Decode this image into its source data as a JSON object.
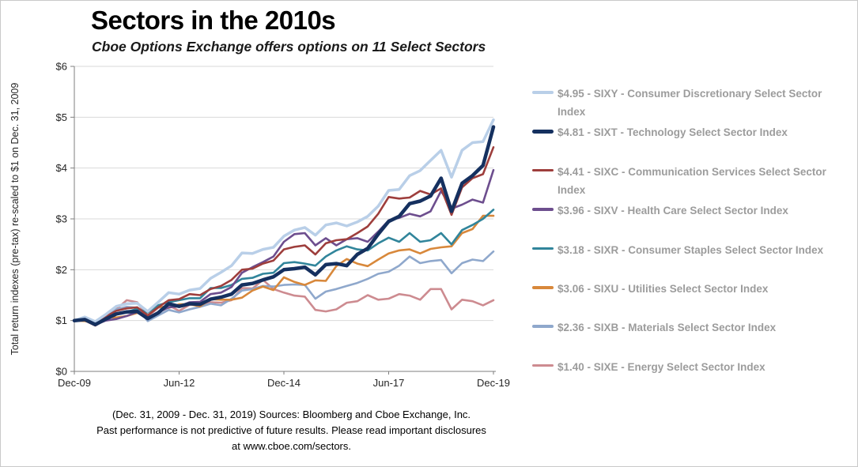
{
  "header": {
    "title": "Sectors in the 2010s",
    "subtitle": "Cboe Options Exchange offers options on 11 Select Sectors"
  },
  "footer": {
    "line1": "(Dec. 31, 2009 - Dec. 31, 2019)  Sources: Bloomberg and Cboe Exchange, Inc.",
    "line2": "Past performance is not predictive of future results. Please read important disclosures",
    "line3": "at www.cboe.com/sectors."
  },
  "chart_data": {
    "type": "line",
    "title": "Sectors in the 2010s",
    "subtitle": "Cboe Options Exchange offers options on 11 Select Sectors",
    "xlabel": "",
    "ylabel": "Total return indexes (pre-tax) re-scaled to $1 on Dec. 31, 2009",
    "period": "Dec. 31, 2009 - Dec. 31, 2019",
    "x_unit": "quarters since Dec-2009",
    "ylim": [
      0,
      6
    ],
    "grid": true,
    "legend_position": "right",
    "axis_color": "#7f7f7f",
    "grid_color": "#d9d9d9",
    "y_ticks": [
      {
        "label": "$0",
        "v": 0
      },
      {
        "label": "$1",
        "v": 1
      },
      {
        "label": "$2",
        "v": 2
      },
      {
        "label": "$3",
        "v": 3
      },
      {
        "label": "$4",
        "v": 4
      },
      {
        "label": "$5",
        "v": 5
      },
      {
        "label": "$6",
        "v": 6
      }
    ],
    "x_ticks": [
      {
        "label": "Dec-09",
        "q": 0
      },
      {
        "label": "Jun-12",
        "q": 10
      },
      {
        "label": "Dec-14",
        "q": 20
      },
      {
        "label": "Jun-17",
        "q": 30
      },
      {
        "label": "Dec-19",
        "q": 40
      }
    ],
    "draw_order": [
      7,
      6,
      5,
      4,
      3,
      2,
      0,
      1
    ],
    "series": [
      {
        "ticker": "SIXY",
        "name": "Consumer Discretionary Select Sector Index",
        "final_value": "$4.95",
        "legend_label": "$4.95 - SIXY - Consumer Discretionary Select Sector Index",
        "color": "#b9cfe8",
        "stroke_width": 3.5,
        "values": [
          1.0,
          1.07,
          0.98,
          1.12,
          1.28,
          1.33,
          1.34,
          1.18,
          1.36,
          1.55,
          1.52,
          1.6,
          1.63,
          1.83,
          1.95,
          2.08,
          2.33,
          2.32,
          2.4,
          2.44,
          2.66,
          2.78,
          2.83,
          2.68,
          2.88,
          2.92,
          2.86,
          2.94,
          3.05,
          3.25,
          3.56,
          3.58,
          3.85,
          3.95,
          4.15,
          4.35,
          3.82,
          4.35,
          4.5,
          4.52,
          4.95
        ]
      },
      {
        "ticker": "SIXT",
        "name": "Technology Select Sector Index",
        "final_value": "$4.81",
        "legend_label": "$4.81 - SIXT - Technology Select Sector Index",
        "color": "#15305f",
        "stroke_width": 4.5,
        "values": [
          1.0,
          1.02,
          0.92,
          1.03,
          1.13,
          1.17,
          1.18,
          1.04,
          1.15,
          1.33,
          1.28,
          1.33,
          1.32,
          1.42,
          1.46,
          1.52,
          1.7,
          1.73,
          1.8,
          1.86,
          2.0,
          2.02,
          2.05,
          1.9,
          2.1,
          2.12,
          2.08,
          2.3,
          2.42,
          2.7,
          2.95,
          3.05,
          3.3,
          3.35,
          3.45,
          3.8,
          3.15,
          3.7,
          3.85,
          4.05,
          4.81
        ]
      },
      {
        "ticker": "SIXC",
        "name": "Communication Services Select Sector Index",
        "final_value": "$4.41",
        "legend_label": "$4.41 - SIXC - Communication Services Select Sector Index",
        "color": "#9e3e3c",
        "stroke_width": 2.6,
        "values": [
          1.0,
          1.05,
          0.96,
          1.08,
          1.19,
          1.24,
          1.26,
          1.1,
          1.26,
          1.4,
          1.42,
          1.52,
          1.5,
          1.62,
          1.68,
          1.8,
          2.0,
          2.02,
          2.12,
          2.18,
          2.4,
          2.45,
          2.48,
          2.3,
          2.52,
          2.58,
          2.6,
          2.72,
          2.85,
          3.1,
          3.43,
          3.4,
          3.42,
          3.55,
          3.48,
          3.6,
          3.08,
          3.62,
          3.8,
          3.88,
          4.41
        ]
      },
      {
        "ticker": "SIXV",
        "name": "Health Care Select Sector Index",
        "final_value": "$3.96",
        "legend_label": "$3.96 - SIXV - Health Care Select Sector Index",
        "color": "#6d4e8e",
        "stroke_width": 2.6,
        "values": [
          1.0,
          1.03,
          0.92,
          1.0,
          1.03,
          1.09,
          1.17,
          1.05,
          1.16,
          1.26,
          1.28,
          1.36,
          1.37,
          1.52,
          1.55,
          1.66,
          1.94,
          2.05,
          2.15,
          2.26,
          2.55,
          2.7,
          2.72,
          2.48,
          2.62,
          2.48,
          2.6,
          2.62,
          2.55,
          2.75,
          2.97,
          3.02,
          3.1,
          3.05,
          3.15,
          3.55,
          3.2,
          3.28,
          3.38,
          3.32,
          3.96
        ]
      },
      {
        "ticker": "SIXR",
        "name": "Consumer Staples Select Sector Index",
        "final_value": "$3.18",
        "legend_label": "$3.18 - SIXR - Consumer Staples Select Sector Index",
        "color": "#31859b",
        "stroke_width": 2.6,
        "values": [
          1.0,
          1.05,
          0.98,
          1.08,
          1.14,
          1.17,
          1.23,
          1.16,
          1.3,
          1.36,
          1.4,
          1.44,
          1.44,
          1.64,
          1.64,
          1.7,
          1.82,
          1.84,
          1.92,
          1.94,
          2.13,
          2.15,
          2.12,
          2.08,
          2.26,
          2.38,
          2.46,
          2.4,
          2.38,
          2.52,
          2.63,
          2.55,
          2.72,
          2.55,
          2.58,
          2.72,
          2.5,
          2.78,
          2.88,
          3.0,
          3.18
        ]
      },
      {
        "ticker": "SIXU",
        "name": "Utilities Select Sector Index",
        "final_value": "$3.06",
        "legend_label": "$3.06 - SIXU - Utilities Select Sector Index",
        "color": "#d8883b",
        "stroke_width": 2.6,
        "values": [
          1.0,
          0.99,
          0.95,
          1.07,
          1.06,
          1.09,
          1.15,
          1.16,
          1.27,
          1.25,
          1.32,
          1.32,
          1.28,
          1.42,
          1.41,
          1.41,
          1.45,
          1.59,
          1.67,
          1.6,
          1.85,
          1.76,
          1.7,
          1.79,
          1.78,
          2.07,
          2.21,
          2.12,
          2.07,
          2.2,
          2.32,
          2.38,
          2.4,
          2.32,
          2.41,
          2.44,
          2.46,
          2.72,
          2.8,
          3.06,
          3.06
        ]
      },
      {
        "ticker": "SIXB",
        "name": "Materials Select Sector Index",
        "final_value": "$2.36",
        "legend_label": "$2.36 - SIXB - Materials Select Sector Index",
        "color": "#8fa8cc",
        "stroke_width": 2.6,
        "values": [
          1.0,
          1.03,
          0.92,
          1.07,
          1.22,
          1.27,
          1.25,
          0.99,
          1.1,
          1.21,
          1.16,
          1.22,
          1.27,
          1.33,
          1.3,
          1.43,
          1.59,
          1.62,
          1.68,
          1.67,
          1.7,
          1.71,
          1.7,
          1.43,
          1.57,
          1.62,
          1.68,
          1.74,
          1.82,
          1.92,
          1.96,
          2.08,
          2.26,
          2.13,
          2.17,
          2.19,
          1.93,
          2.13,
          2.2,
          2.17,
          2.36
        ]
      },
      {
        "ticker": "SIXE",
        "name": "Energy Select Sector Index",
        "final_value": "$1.40",
        "legend_label": "$1.40 - SIXE - Energy Select Sector Index",
        "color": "#cd8b90",
        "stroke_width": 2.6,
        "values": [
          1.0,
          1.0,
          0.9,
          1.02,
          1.22,
          1.4,
          1.36,
          1.08,
          1.25,
          1.3,
          1.19,
          1.31,
          1.31,
          1.36,
          1.35,
          1.4,
          1.64,
          1.63,
          1.8,
          1.62,
          1.55,
          1.49,
          1.47,
          1.21,
          1.18,
          1.22,
          1.35,
          1.38,
          1.5,
          1.41,
          1.43,
          1.52,
          1.49,
          1.41,
          1.62,
          1.62,
          1.22,
          1.41,
          1.38,
          1.3,
          1.4
        ]
      }
    ]
  }
}
